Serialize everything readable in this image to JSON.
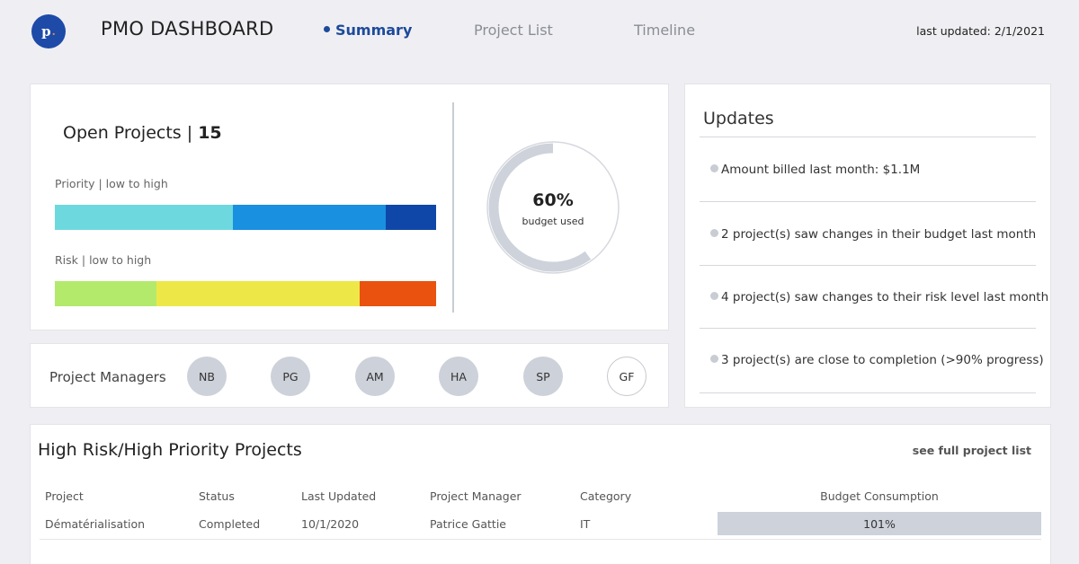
{
  "header": {
    "logo_text": "p",
    "logo_dot": ".",
    "title": "PMO DASHBOARD",
    "nav": [
      {
        "label": "Summary",
        "active": true
      },
      {
        "label": "Project List",
        "active": false
      },
      {
        "label": "Timeline",
        "active": false
      }
    ],
    "last_updated": "last updated: 2/1/2021"
  },
  "open_projects": {
    "label": "Open Projects |",
    "count": "15",
    "priority": {
      "label": "Priority | low to high",
      "segments": [
        {
          "level": "low",
          "fraction": 0.467,
          "color": "#6dd9de"
        },
        {
          "level": "medium",
          "fraction": 0.4,
          "color": "#1990e0"
        },
        {
          "level": "high",
          "fraction": 0.133,
          "color": "#0f47a8"
        }
      ]
    },
    "risk": {
      "label": "Risk | low to high",
      "segments": [
        {
          "level": "low",
          "fraction": 0.267,
          "color": "#b3ea6c"
        },
        {
          "level": "medium",
          "fraction": 0.533,
          "color": "#ede847"
        },
        {
          "level": "high",
          "fraction": 0.2,
          "color": "#ea520f"
        }
      ]
    },
    "budget": {
      "percent_text": "60%",
      "caption": "budget used",
      "fraction": 0.6
    }
  },
  "project_managers": {
    "label": "Project Managers",
    "avatars": [
      "NB",
      "PG",
      "AM",
      "HA",
      "SP",
      "GF"
    ]
  },
  "updates": {
    "title": "Updates",
    "items": [
      "Amount billed last month: $1.1M",
      "2 project(s) saw changes in their budget last month",
      "4 project(s) saw changes to their risk level last month",
      "3 project(s) are close to completion (>90% progress)"
    ]
  },
  "high_risk": {
    "title": "High Risk/High Priority Projects",
    "link": "see full project list",
    "columns": [
      "Project",
      "Status",
      "Last Updated",
      "Project Manager",
      "Category",
      "Budget Consumption"
    ],
    "rows": [
      {
        "project": "Dématérialisation",
        "status": "Completed",
        "last_updated": "10/1/2020",
        "manager": "Patrice Gattie",
        "category": "IT",
        "budget": "101%"
      }
    ]
  },
  "colors": {
    "accent": "#1d4a9a",
    "donut_track": "#cdd2db"
  }
}
